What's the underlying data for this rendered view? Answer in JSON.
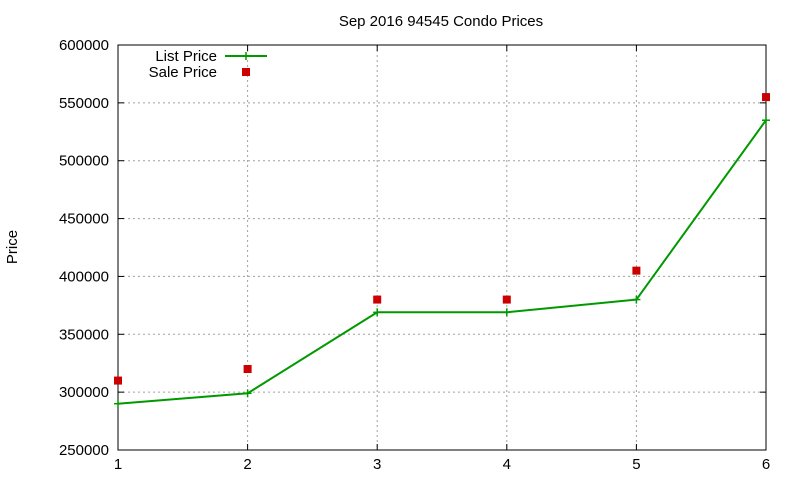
{
  "chart_data": {
    "type": "line",
    "title": "Sep 2016 94545 Condo Prices",
    "xlabel": "",
    "ylabel": "Price",
    "x": [
      1,
      2,
      3,
      4,
      5,
      6
    ],
    "xlim": [
      1,
      6
    ],
    "ylim": [
      250000,
      600000
    ],
    "xticks": [
      "1",
      "2",
      "3",
      "4",
      "5",
      "6"
    ],
    "yticks": [
      "250000",
      "300000",
      "350000",
      "400000",
      "450000",
      "500000",
      "550000",
      "600000"
    ],
    "grid": true,
    "legend_position": "top-left",
    "series": [
      {
        "name": "List Price",
        "kind": "line-with-plus-markers",
        "color": "#009900",
        "values": [
          290000,
          299000,
          369000,
          369000,
          380000,
          535000
        ]
      },
      {
        "name": "Sale Price",
        "kind": "square-markers",
        "color": "#cc0000",
        "values": [
          310000,
          320000,
          380000,
          380000,
          405000,
          555000
        ]
      }
    ]
  }
}
